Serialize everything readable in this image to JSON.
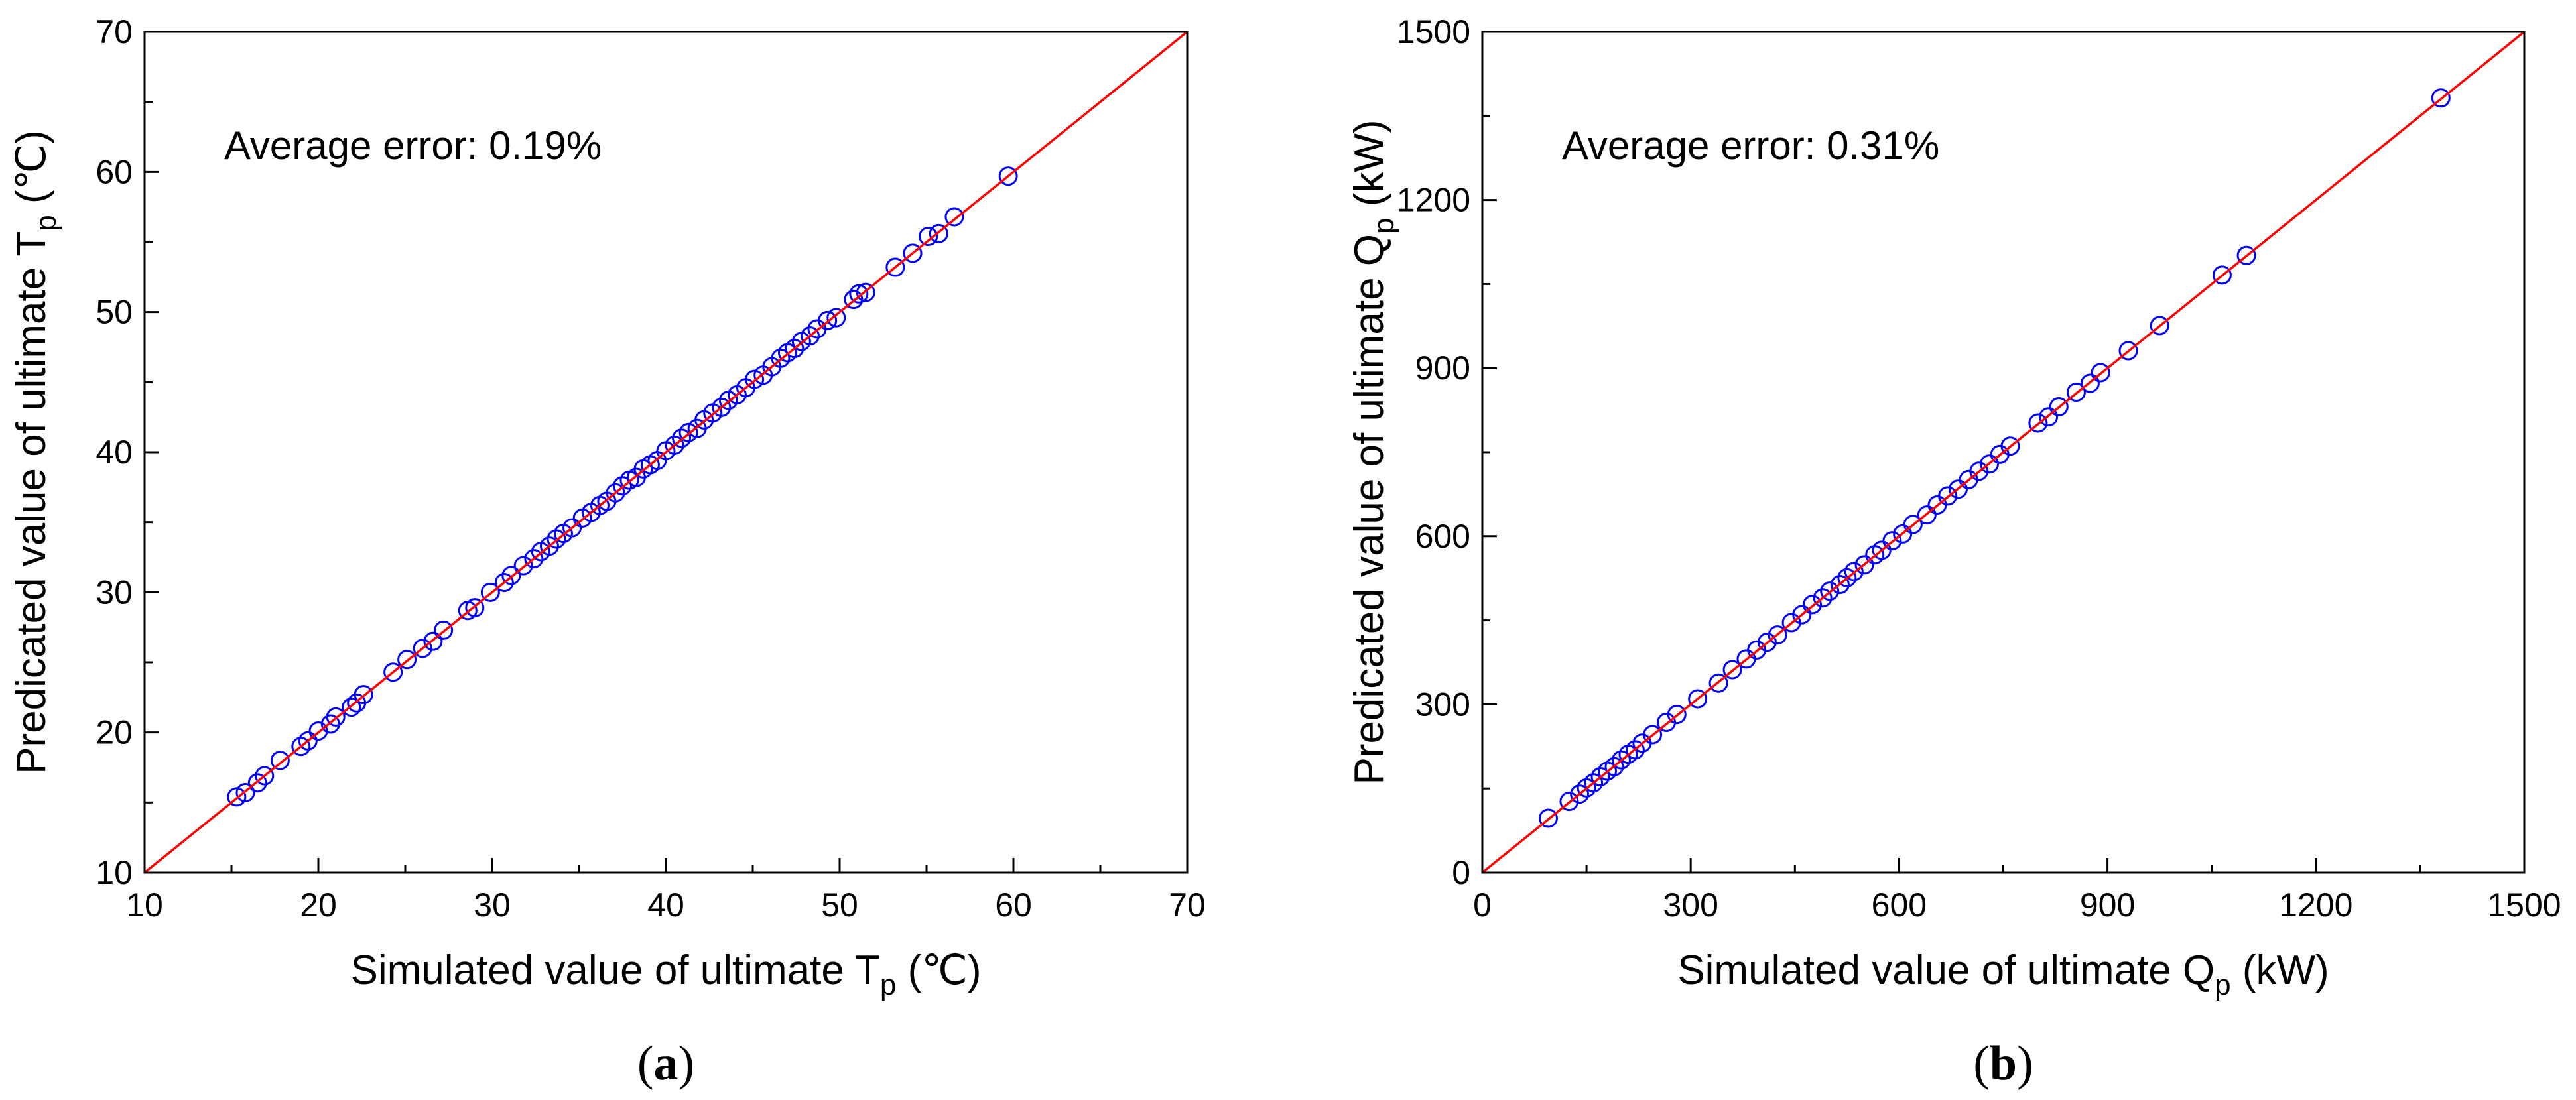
{
  "figure": {
    "marker_color": "#0000FF",
    "line_color": "#FF0000"
  },
  "chart_data": [
    {
      "type": "scatter",
      "panel_label": "a",
      "annotation": "Average error: 0.19%",
      "xlabel_prefix": "Simulated value of ultimate T",
      "xlabel_subscript": "p",
      "xlabel_suffix": " (℃)",
      "ylabel_prefix": "Predicated value of ultimate T",
      "ylabel_subscript": "p",
      "ylabel_suffix": " (℃)",
      "xlim": [
        10,
        70
      ],
      "ylim": [
        10,
        70
      ],
      "xticks": [
        10,
        20,
        30,
        40,
        50,
        60,
        70
      ],
      "yticks": [
        10,
        20,
        30,
        40,
        50,
        60,
        70
      ],
      "reference_line": "y = x",
      "points": [
        [
          15.3,
          15.4
        ],
        [
          15.8,
          15.7
        ],
        [
          16.5,
          16.4
        ],
        [
          16.9,
          16.9
        ],
        [
          17.8,
          18.0
        ],
        [
          19.0,
          19.0
        ],
        [
          19.4,
          19.4
        ],
        [
          20.0,
          20.1
        ],
        [
          20.7,
          20.6
        ],
        [
          21.0,
          21.1
        ],
        [
          21.9,
          21.8
        ],
        [
          22.2,
          22.1
        ],
        [
          22.6,
          22.7
        ],
        [
          24.3,
          24.3
        ],
        [
          25.1,
          25.2
        ],
        [
          26.0,
          26.0
        ],
        [
          26.6,
          26.5
        ],
        [
          27.2,
          27.3
        ],
        [
          28.6,
          28.7
        ],
        [
          29.0,
          28.9
        ],
        [
          29.9,
          30.0
        ],
        [
          30.7,
          30.7
        ],
        [
          31.1,
          31.2
        ],
        [
          31.8,
          31.9
        ],
        [
          32.4,
          32.4
        ],
        [
          32.8,
          32.9
        ],
        [
          33.3,
          33.3
        ],
        [
          33.7,
          33.8
        ],
        [
          34.1,
          34.2
        ],
        [
          34.6,
          34.6
        ],
        [
          35.2,
          35.3
        ],
        [
          35.7,
          35.7
        ],
        [
          36.2,
          36.2
        ],
        [
          36.6,
          36.5
        ],
        [
          37.1,
          37.1
        ],
        [
          37.5,
          37.6
        ],
        [
          37.9,
          38.0
        ],
        [
          38.3,
          38.2
        ],
        [
          38.7,
          38.8
        ],
        [
          39.1,
          39.1
        ],
        [
          39.5,
          39.4
        ],
        [
          40.0,
          40.1
        ],
        [
          40.5,
          40.5
        ],
        [
          40.9,
          41.0
        ],
        [
          41.3,
          41.4
        ],
        [
          41.8,
          41.7
        ],
        [
          42.2,
          42.3
        ],
        [
          42.7,
          42.8
        ],
        [
          43.2,
          43.2
        ],
        [
          43.6,
          43.7
        ],
        [
          44.1,
          44.1
        ],
        [
          44.6,
          44.6
        ],
        [
          45.1,
          45.2
        ],
        [
          45.6,
          45.5
        ],
        [
          46.1,
          46.1
        ],
        [
          46.6,
          46.7
        ],
        [
          47.0,
          47.1
        ],
        [
          47.4,
          47.4
        ],
        [
          47.8,
          47.9
        ],
        [
          48.3,
          48.3
        ],
        [
          48.7,
          48.8
        ],
        [
          49.3,
          49.4
        ],
        [
          49.8,
          49.6
        ],
        [
          50.8,
          50.9
        ],
        [
          51.1,
          51.3
        ],
        [
          51.5,
          51.4
        ],
        [
          53.2,
          53.2
        ],
        [
          54.2,
          54.2
        ],
        [
          55.1,
          55.4
        ],
        [
          55.7,
          55.6
        ],
        [
          56.6,
          56.8
        ],
        [
          59.7,
          59.7
        ]
      ]
    },
    {
      "type": "scatter",
      "panel_label": "b",
      "annotation": "Average error: 0.31%",
      "xlabel_prefix": "Simulated value of ultimate Q",
      "xlabel_subscript": "p",
      "xlabel_suffix": " (kW)",
      "ylabel_prefix": "Predicated value of ultimate Q",
      "ylabel_subscript": "p",
      "ylabel_suffix": " (kW)",
      "xlim": [
        0,
        1500
      ],
      "ylim": [
        0,
        1500
      ],
      "xticks": [
        0,
        300,
        600,
        900,
        1200,
        1500
      ],
      "yticks": [
        0,
        300,
        600,
        900,
        1200,
        1500
      ],
      "reference_line": "y = x",
      "points": [
        [
          95,
          97
        ],
        [
          125,
          127
        ],
        [
          140,
          140
        ],
        [
          150,
          151
        ],
        [
          160,
          160
        ],
        [
          170,
          171
        ],
        [
          180,
          181
        ],
        [
          190,
          189
        ],
        [
          200,
          201
        ],
        [
          210,
          211
        ],
        [
          220,
          219
        ],
        [
          230,
          231
        ],
        [
          245,
          246
        ],
        [
          265,
          268
        ],
        [
          280,
          282
        ],
        [
          310,
          310
        ],
        [
          340,
          338
        ],
        [
          360,
          362
        ],
        [
          380,
          381
        ],
        [
          395,
          397
        ],
        [
          410,
          411
        ],
        [
          425,
          424
        ],
        [
          445,
          446
        ],
        [
          460,
          460
        ],
        [
          475,
          478
        ],
        [
          490,
          490
        ],
        [
          500,
          502
        ],
        [
          515,
          514
        ],
        [
          525,
          526
        ],
        [
          535,
          537
        ],
        [
          550,
          549
        ],
        [
          565,
          567
        ],
        [
          575,
          575
        ],
        [
          590,
          592
        ],
        [
          605,
          604
        ],
        [
          620,
          621
        ],
        [
          640,
          638
        ],
        [
          655,
          656
        ],
        [
          670,
          672
        ],
        [
          685,
          684
        ],
        [
          700,
          701
        ],
        [
          715,
          716
        ],
        [
          730,
          729
        ],
        [
          745,
          746
        ],
        [
          760,
          761
        ],
        [
          800,
          802
        ],
        [
          815,
          813
        ],
        [
          830,
          831
        ],
        [
          855,
          857
        ],
        [
          875,
          873
        ],
        [
          890,
          892
        ],
        [
          930,
          931
        ],
        [
          975,
          976
        ],
        [
          1065,
          1066
        ],
        [
          1100,
          1101
        ],
        [
          1380,
          1382
        ]
      ]
    }
  ]
}
